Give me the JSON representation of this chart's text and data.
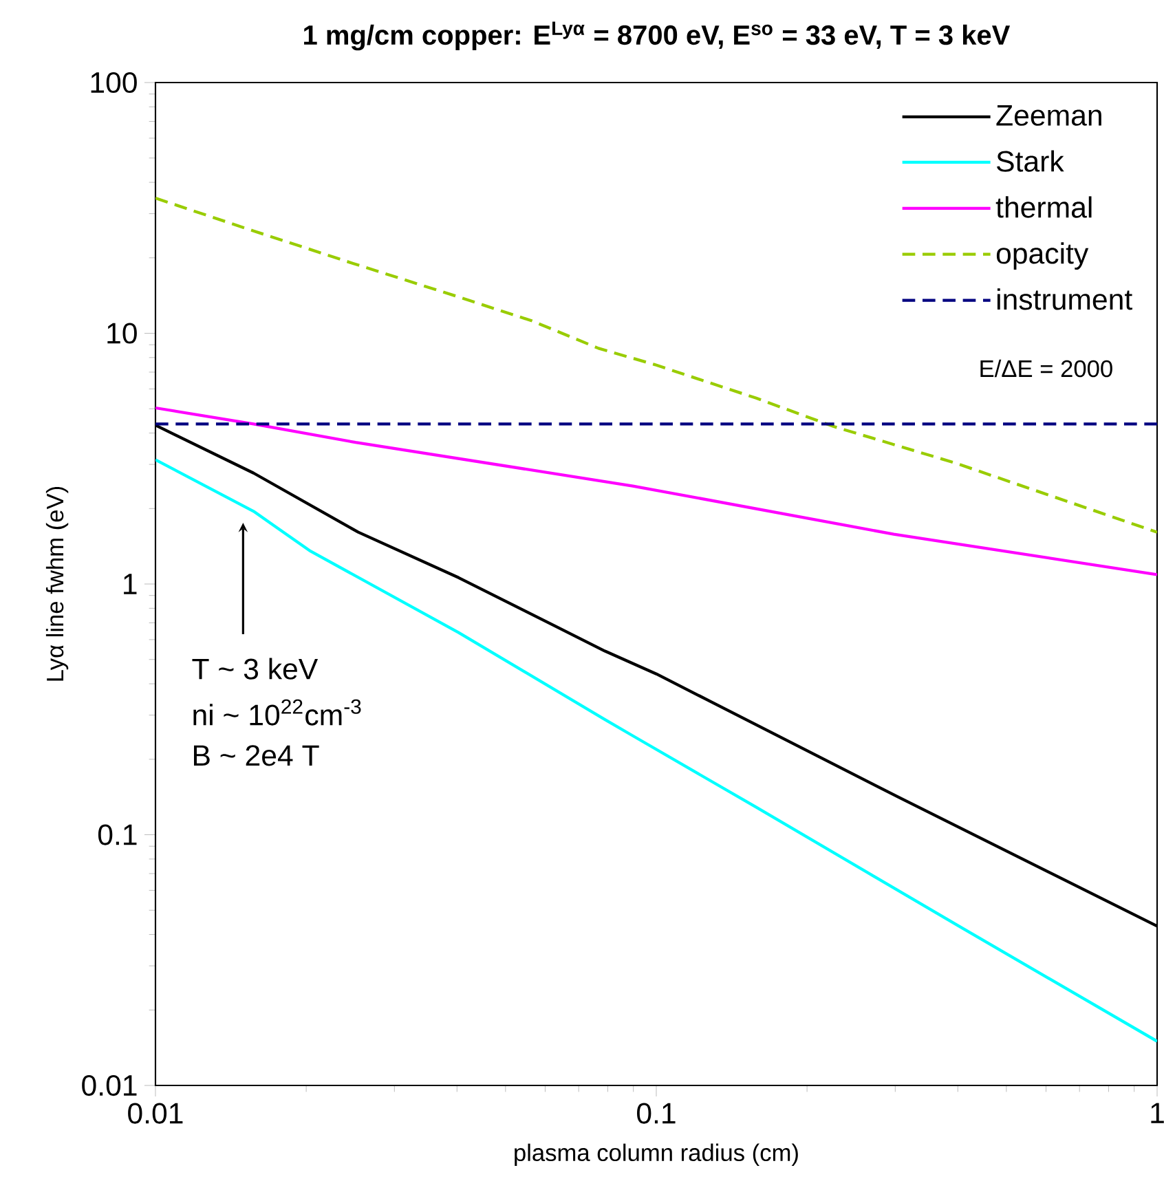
{
  "chart_data": {
    "type": "line",
    "title": "1 mg/cm copper: E$^{Lyα}$ = 8700 eV, E$^{so}$ = 33 eV, T = 3 keV",
    "xlabel": "plasma column radius (cm)",
    "ylabel": "Lyα line fwhm (eV)",
    "log": "xy",
    "xlim": [
      0.01,
      1
    ],
    "ylim": [
      0.01,
      100
    ],
    "xticks": [
      0.01,
      0.1,
      1
    ],
    "yticks": [
      0.01,
      0.1,
      1,
      10,
      100
    ],
    "legend": "top right",
    "marker": "none",
    "series": [
      {
        "name": "Zeeman",
        "color": "#000000",
        "line_style": "solid",
        "x": [
          0.01,
          0.0157,
          0.0254,
          0.0403,
          0.0628,
          0.079,
          0.1,
          0.305,
          1
        ],
        "values": [
          4.3,
          2.77,
          1.61,
          1.06,
          0.68,
          0.54,
          0.438,
          0.141,
          0.0432
        ]
      },
      {
        "name": "Stark",
        "color": "#00ffff",
        "line_style": "solid",
        "x": [
          0.01,
          0.0157,
          0.0203,
          0.0403,
          0.079,
          0.0898,
          0.158,
          0.402,
          1
        ],
        "values": [
          3.13,
          1.95,
          1.36,
          0.64,
          0.288,
          0.248,
          0.129,
          0.0432,
          0.015
        ]
      },
      {
        "name": "thermal",
        "color": "#ff00ff",
        "line_style": "solid",
        "x": [
          0.01,
          0.0157,
          0.0251,
          0.0898,
          0.298,
          1
        ],
        "values": [
          5.04,
          4.35,
          3.67,
          2.46,
          1.58,
          1.09
        ]
      },
      {
        "name": "opacity",
        "color": "#99cc00",
        "line_style": "dashed",
        "x": [
          0.01,
          0.0119,
          0.0157,
          0.0248,
          0.0397,
          0.0565,
          0.0641,
          0.0767,
          0.0993,
          0.158,
          0.226,
          0.395,
          1
        ],
        "values": [
          34.6,
          30.8,
          25.6,
          19.0,
          14.1,
          11.2,
          10.1,
          8.71,
          7.5,
          5.52,
          4.25,
          3.04,
          1.61
        ]
      },
      {
        "name": "instrument",
        "color": "#000080",
        "line_style": "dashed",
        "x": [
          0.01,
          1
        ],
        "values": [
          4.35,
          4.35
        ]
      }
    ],
    "annotations": [
      "T ~ 3 keV",
      "ni ~ 10$^{22}$cm$^{-3}$",
      "B ~ 2e4 T",
      "E/ΔE = 2000"
    ]
  }
}
